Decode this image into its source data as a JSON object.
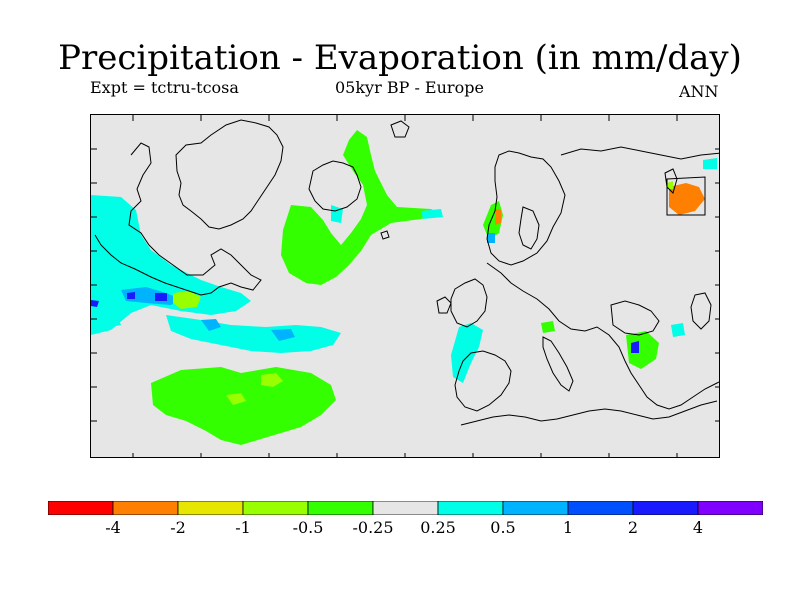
{
  "title": "Precipitation - Evaporation (in mm/day)",
  "subtitle_left": "Expt = tctru-tcosa",
  "subtitle_center": "05kyr BP - Europe",
  "subtitle_right": "ANN",
  "colorbar": {
    "colors": [
      "#ff0000",
      "#ff8000",
      "#e6e600",
      "#99ff00",
      "#33ff00",
      "#e6e6e6",
      "#00ffe6",
      "#00b3ff",
      "#0050ff",
      "#1a1aff",
      "#8000ff"
    ],
    "labels": [
      "-4",
      "-2",
      "-1",
      "-0.5",
      "-0.25",
      "0.25",
      "0.5",
      "1",
      "2",
      "4"
    ]
  },
  "map": {
    "background": "#e6e6e6",
    "coastline_color": "#000000",
    "tick_marks": "all four sides"
  }
}
